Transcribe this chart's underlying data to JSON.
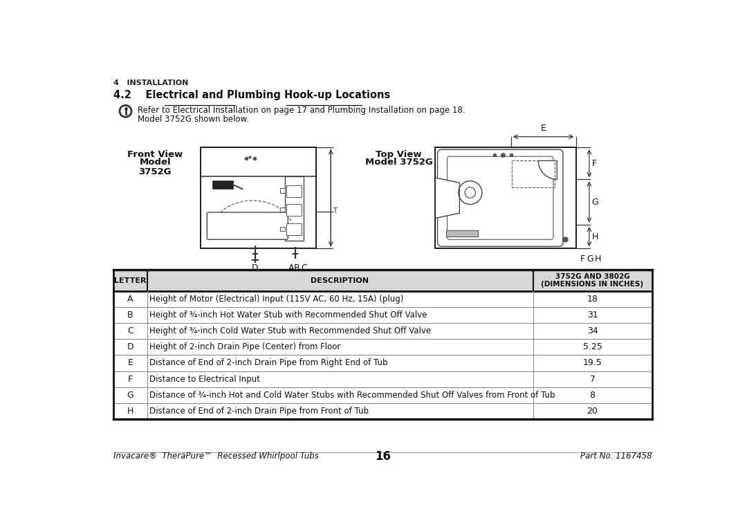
{
  "bg_color": "#ffffff",
  "section_header": "4   INSTALLATION",
  "subsection_header": "4.2    Electrical and Plumbing Hook-up Locations",
  "info_text_line1": "Refer to Electrical Installation on page 17 and Plumbing Installation on page 18.",
  "info_text_line2": "Model 3752G shown below.",
  "table_headers": [
    "LETTER",
    "DESCRIPTION",
    "3752G AND 3802G\n(DIMENSIONS IN INCHES)"
  ],
  "table_rows": [
    [
      "A",
      "Height of Motor (Electrical) Input (115V AC, 60 Hz, 15A) (plug)",
      "18"
    ],
    [
      "B",
      "Height of ¾-inch Hot Water Stub with Recommended Shut Off Valve",
      "31"
    ],
    [
      "C",
      "Height of ¾-inch Cold Water Stub with Recommended Shut Off Valve",
      "34"
    ],
    [
      "D",
      "Height of 2-inch Drain Pipe (Center) from Floor",
      "5.25"
    ],
    [
      "E",
      "Distance of End of 2-inch Drain Pipe from Right End of Tub",
      "19.5"
    ],
    [
      "F",
      "Distance to Electrical Input",
      "7"
    ],
    [
      "G",
      "Distance of ¾-inch Hot and Cold Water Stubs with Recommended Shut Off Valves from Front of Tub",
      "8"
    ],
    [
      "H",
      "Distance of End of 2-inch Drain Pipe from Front of Tub",
      "20"
    ]
  ],
  "footer_left": "Invacare®  TheraPure™  Recessed Whirlpool Tubs",
  "footer_center": "16",
  "footer_right": "Part No. 1167458"
}
